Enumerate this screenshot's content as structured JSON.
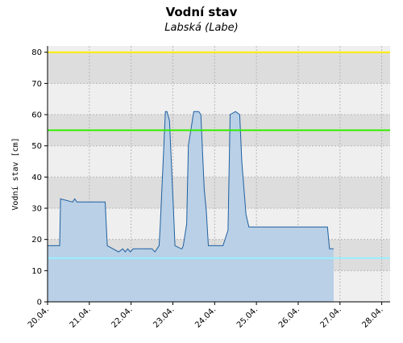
{
  "chart_data": {
    "type": "area",
    "title": "Vodní stav",
    "subtitle": "Labská (Labe)",
    "ylabel": "Vodní stav [cm]",
    "xlabel": "",
    "ylim": [
      0,
      82
    ],
    "xlim": [
      0,
      8.2
    ],
    "y_ticks": [
      0,
      10,
      20,
      30,
      40,
      50,
      60,
      70,
      80
    ],
    "x_ticks": [
      {
        "label": "20.04.",
        "x": 0
      },
      {
        "label": "21.04.",
        "x": 1
      },
      {
        "label": "22.04.",
        "x": 2
      },
      {
        "label": "23.04.",
        "x": 3
      },
      {
        "label": "24.04.",
        "x": 4
      },
      {
        "label": "25.04.",
        "x": 5
      },
      {
        "label": "26.04.",
        "x": 6
      },
      {
        "label": "27.04.",
        "x": 7
      },
      {
        "label": "28.04.",
        "x": 8
      }
    ],
    "grid": true,
    "bands_alternating": true,
    "series": [
      {
        "color": "#1f5fa0",
        "fill": "#b9d0e6",
        "x": [
          0.0,
          0.29,
          0.31,
          0.6,
          0.65,
          0.7,
          0.75,
          1.1,
          1.38,
          1.43,
          1.7,
          1.8,
          1.86,
          1.92,
          1.98,
          2.05,
          2.1,
          2.5,
          2.57,
          2.67,
          2.7,
          2.82,
          2.86,
          2.92,
          3.02,
          3.05,
          3.2,
          3.22,
          3.25,
          3.33,
          3.37,
          3.5,
          3.58,
          3.62,
          3.67,
          3.75,
          3.8,
          3.85,
          3.95,
          4.05,
          4.2,
          4.32,
          4.37,
          4.5,
          4.6,
          4.65,
          4.75,
          4.82,
          5.0,
          5.5,
          6.0,
          6.5,
          6.7,
          6.75,
          6.85
        ],
        "y": [
          18,
          18,
          33,
          32,
          33,
          32,
          32,
          32,
          32,
          18,
          16,
          17,
          16,
          17,
          16,
          17,
          17,
          17,
          16,
          18,
          25,
          61,
          61,
          58,
          28,
          18,
          17,
          17,
          18,
          25,
          50,
          61,
          61,
          61,
          60,
          36,
          29,
          18,
          18,
          18,
          18,
          23,
          60,
          61,
          60,
          45,
          28,
          24,
          24,
          24,
          24,
          24,
          24,
          17,
          17
        ]
      }
    ],
    "thresholds": [
      {
        "y": 80,
        "color": "#ffee00"
      },
      {
        "y": 55,
        "color": "#33ee00"
      },
      {
        "y": 14,
        "color": "#99eeff"
      }
    ]
  }
}
